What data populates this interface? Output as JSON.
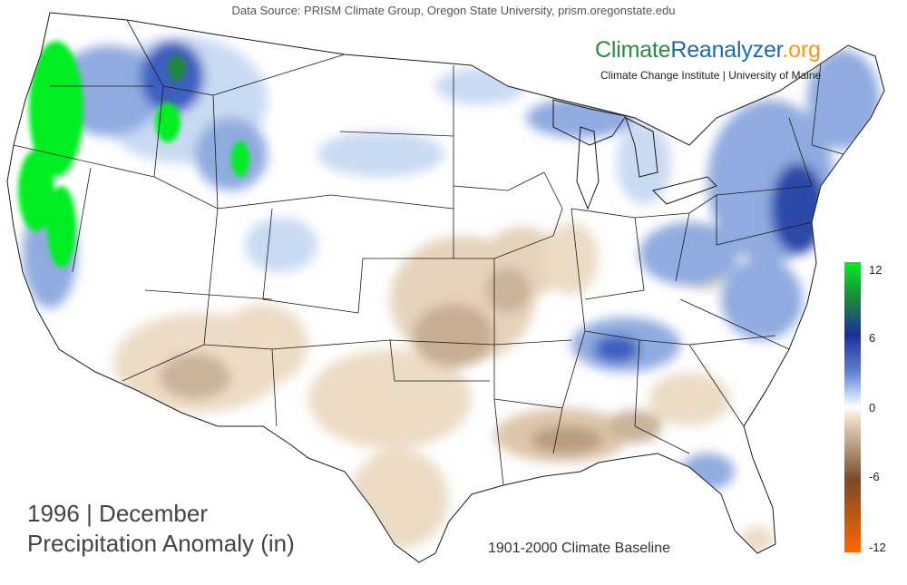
{
  "source": "Data Source: PRISM Climate Group, Oregon State University, prism.oregonstate.edu",
  "branding": {
    "name_part1": "Climate",
    "name_part2": "Reanalyzer",
    "name_part3": ".org",
    "subtitle": "Climate Change Institute | University of Maine"
  },
  "title": {
    "line1": "1996 | December",
    "line2": "Precipitation Anomaly (in)"
  },
  "baseline": "1901-2000 Climate Baseline",
  "legend": {
    "ticks": [
      "12",
      "6",
      "0",
      "-6",
      "-12"
    ],
    "colors": {
      "p12": "#00ee22",
      "p9": "#1e8a3c",
      "p6": "#1c2e9a",
      "p3": "#5f82d0",
      "p1": "#c9daf3",
      "zero": "#ffffff",
      "n1": "#ecdcc6",
      "n3": "#bca58d",
      "n6": "#7a4a2a",
      "n12": "#ff6600"
    }
  },
  "colors": {
    "brand_green": "#2a8a3e",
    "brand_blue": "#1f68b0",
    "brand_orange": "#f39a1e",
    "border": "#1a1a1a"
  }
}
